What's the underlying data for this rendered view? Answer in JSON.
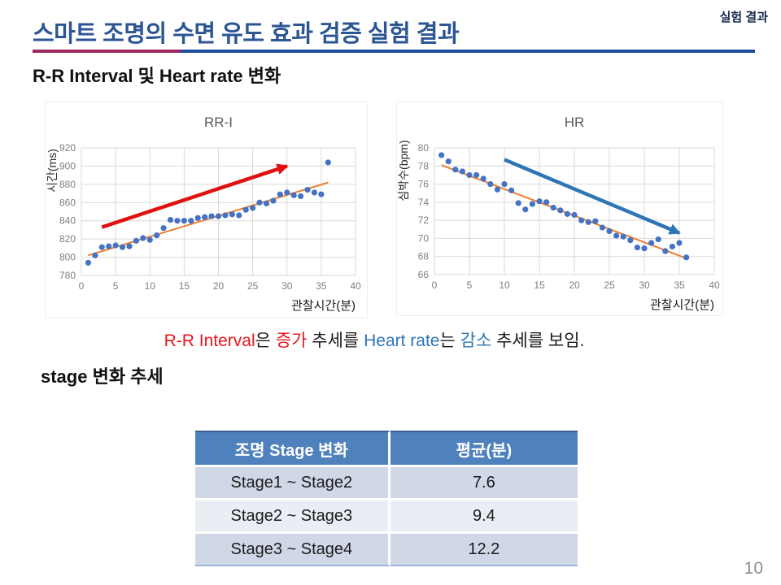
{
  "slide": {
    "corner_label": "실험 결과",
    "title": "스마트 조명의 수면 유도 효과 검증 실험 결과",
    "section1_heading": "R-R Interval 및 Heart rate 변화",
    "section2_heading": "stage 변화 추세",
    "page_number": "10",
    "summary_segments": [
      {
        "text": "R-R Interval",
        "color": "#e9141d"
      },
      {
        "text": "은 ",
        "color": "#1a1a1a"
      },
      {
        "text": "증가",
        "color": "#e9141d"
      },
      {
        "text": " 추세를 ",
        "color": "#1a1a1a"
      },
      {
        "text": "Heart rate",
        "color": "#2e75b6"
      },
      {
        "text": "는 ",
        "color": "#1a1a1a"
      },
      {
        "text": "감소",
        "color": "#2e75b6"
      },
      {
        "text": " 추세를 보임.",
        "color": "#1a1a1a"
      }
    ]
  },
  "colors": {
    "title_blue": "#2b5693",
    "rule_left_crimson": "#9b2a60",
    "rule_right_navy": "#1f4e9e",
    "scatter_point_blue": "#4472c4",
    "trendline_orange": "#ed7d31",
    "arrow_red": "#e01010",
    "arrow_blue": "#2e75b6",
    "grid_gray": "#d9d9d9",
    "tick_gray": "#7f7f7f",
    "chart_title_gray": "#595959"
  },
  "chart_data": [
    {
      "type": "scatter",
      "title": "RR-I",
      "xlabel": "관찰시간(분)",
      "ylabel": "시간(ms)",
      "xlim": [
        0,
        40
      ],
      "xstep": 5,
      "ylim": [
        780,
        920
      ],
      "ystep": 20,
      "grid": true,
      "point_color": "#4472c4",
      "x": [
        1,
        2,
        3,
        4,
        5,
        6,
        7,
        8,
        9,
        10,
        11,
        12,
        13,
        14,
        15,
        16,
        17,
        18,
        19,
        20,
        21,
        22,
        23,
        24,
        25,
        26,
        27,
        28,
        29,
        30,
        31,
        32,
        33,
        34,
        35,
        36
      ],
      "y": [
        794,
        802,
        811,
        812,
        813,
        811,
        812,
        818,
        821,
        819,
        824,
        832,
        841,
        840,
        840,
        840,
        843,
        844,
        845,
        845,
        846,
        847,
        846,
        852,
        854,
        860,
        859,
        862,
        869,
        871,
        868,
        867,
        874,
        871,
        869,
        904
      ],
      "trendline": {
        "x1": 1,
        "y1": 802,
        "x2": 36,
        "y2": 882,
        "color": "#ed7d31"
      },
      "arrow": {
        "x1": 3,
        "y1": 833,
        "x2": 30,
        "y2": 900,
        "color": "#e01010"
      }
    },
    {
      "type": "scatter",
      "title": "HR",
      "xlabel": "관찰시간(분)",
      "ylabel": "심박수(bpm)",
      "xlim": [
        0,
        40
      ],
      "xstep": 5,
      "ylim": [
        66,
        80
      ],
      "ystep": 2,
      "grid": true,
      "point_color": "#4472c4",
      "x": [
        1,
        2,
        3,
        4,
        5,
        6,
        7,
        8,
        9,
        10,
        11,
        12,
        13,
        14,
        15,
        16,
        17,
        18,
        19,
        20,
        21,
        22,
        23,
        24,
        25,
        26,
        27,
        28,
        29,
        30,
        31,
        32,
        33,
        34,
        35,
        36
      ],
      "y": [
        79.2,
        78.5,
        77.6,
        77.4,
        77.0,
        77.0,
        76.6,
        76.0,
        75.4,
        76.0,
        75.3,
        73.9,
        73.2,
        73.8,
        74.1,
        74.0,
        73.4,
        73.1,
        72.7,
        72.6,
        72.0,
        71.8,
        71.9,
        71.2,
        70.8,
        70.3,
        70.2,
        69.8,
        69.0,
        68.9,
        69.5,
        69.9,
        68.6,
        69.1,
        69.5,
        67.9
      ],
      "trendline": {
        "x1": 1,
        "y1": 78.1,
        "x2": 36,
        "y2": 67.8,
        "color": "#ed7d31"
      },
      "arrow": {
        "x1": 10,
        "y1": 78.7,
        "x2": 35,
        "y2": 70.6,
        "color": "#2e75b6"
      }
    }
  ],
  "table": {
    "headers": [
      "조명 Stage 변화",
      "평균(분)"
    ],
    "rows": [
      [
        "Stage1 ~ Stage2",
        "7.6"
      ],
      [
        "Stage2 ~ Stage3",
        "9.4"
      ],
      [
        "Stage3 ~ Stage4",
        "12.2"
      ]
    ],
    "header_bg": "#4f81bd",
    "band1": "#d0d8e8",
    "band2": "#e9edf4"
  }
}
